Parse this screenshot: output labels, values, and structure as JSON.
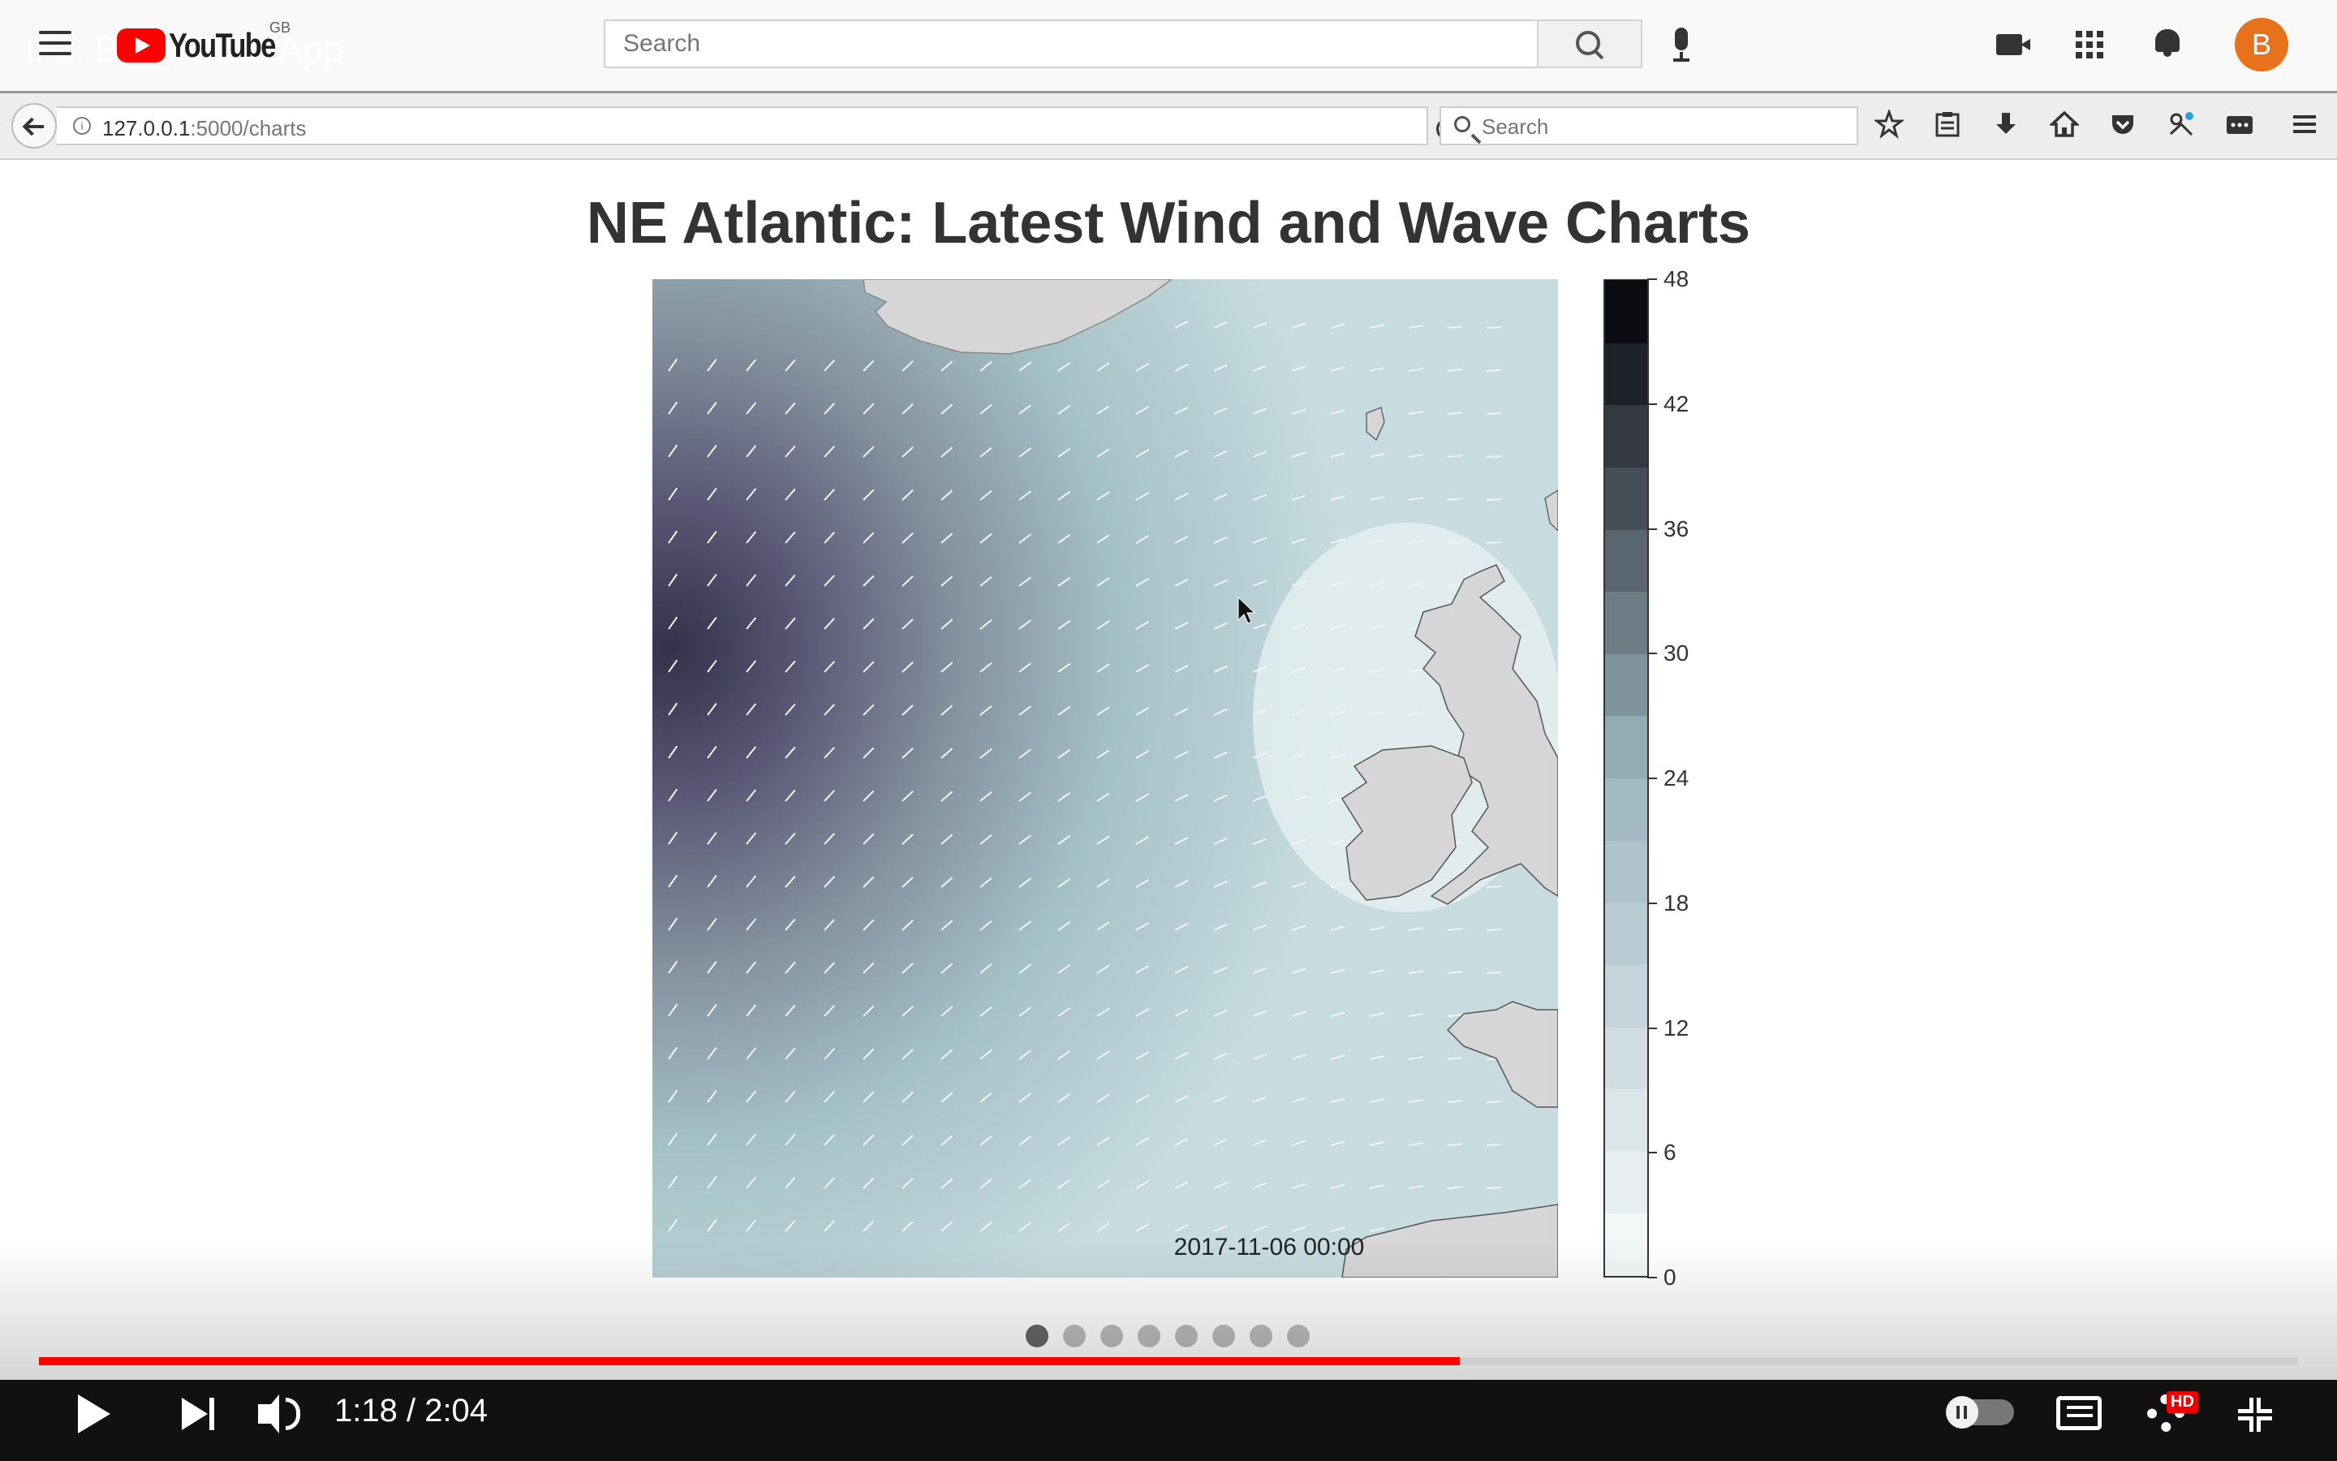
{
  "youtube": {
    "ghost_title": "IF... Buoy Data App",
    "logo_text": "YouTube",
    "region": "GB",
    "search_placeholder": "Search",
    "avatar_letter": "B"
  },
  "browser": {
    "url_host": "127.0.0.1",
    "url_path": ":5000/charts",
    "search_placeholder": "Search"
  },
  "page": {
    "title": "NE Atlantic: Latest Wind and Wave Charts",
    "timestamp": "2017-11-06 00:00",
    "carousel_dots": 8,
    "active_dot": 0
  },
  "colorbar": {
    "labels": [
      "48",
      "42",
      "36",
      "30",
      "24",
      "18",
      "12",
      "6",
      "0"
    ],
    "min": 0,
    "max": 48,
    "colors": {
      "low": "#f2f7f8",
      "mid": "#9db6c0",
      "high": "#0b0b12"
    }
  },
  "map": {
    "land_color": "#d4d4d4",
    "sea_low": "#c8dde1",
    "sea_high": "#35304a"
  },
  "video": {
    "current_time": "1:18",
    "duration": "2:04",
    "time_display": "1:18 / 2:04",
    "progress": 0.629,
    "hd_badge": "HD"
  }
}
